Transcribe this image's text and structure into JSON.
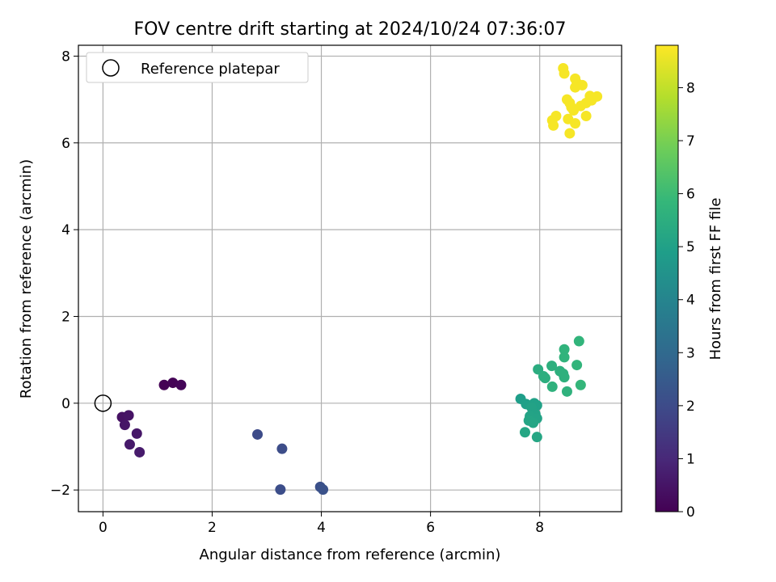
{
  "chart_data": {
    "type": "scatter",
    "title": "FOV centre drift starting at 2024/10/24 07:36:07",
    "xlabel": "Angular distance from reference (arcmin)",
    "ylabel": "Rotation from reference (arcmin)",
    "xlim": [
      -0.45,
      9.5
    ],
    "ylim": [
      -2.5,
      8.25
    ],
    "xticks": [
      0,
      2,
      4,
      6,
      8
    ],
    "yticks": [
      -2,
      0,
      2,
      4,
      6,
      8
    ],
    "grid": true,
    "legend": {
      "position": "top-left",
      "entries": [
        "Reference platepar"
      ]
    },
    "reference_point": {
      "x": 0,
      "y": 0
    },
    "colorbar": {
      "label": "Hours from first FF file",
      "range": [
        0,
        8.8
      ],
      "ticks": [
        0,
        1,
        2,
        3,
        4,
        5,
        6,
        7,
        8
      ],
      "colormap": "viridis"
    },
    "colors": {
      "viridis_stops": [
        "#440154",
        "#482878",
        "#3e4a89",
        "#31688e",
        "#26828e",
        "#1f9e89",
        "#35b779",
        "#6dcd59",
        "#b4de2c",
        "#fde725"
      ]
    },
    "points": [
      {
        "x": 1.12,
        "y": 0.42,
        "c": 0.0
      },
      {
        "x": 1.28,
        "y": 0.47,
        "c": 0.05
      },
      {
        "x": 1.43,
        "y": 0.42,
        "c": 0.1
      },
      {
        "x": 0.35,
        "y": -0.32,
        "c": 0.4
      },
      {
        "x": 0.47,
        "y": -0.28,
        "c": 0.45
      },
      {
        "x": 0.4,
        "y": -0.5,
        "c": 0.5
      },
      {
        "x": 0.62,
        "y": -0.7,
        "c": 0.55
      },
      {
        "x": 0.49,
        "y": -0.95,
        "c": 0.6
      },
      {
        "x": 0.67,
        "y": -1.13,
        "c": 0.65
      },
      {
        "x": 2.83,
        "y": -0.72,
        "c": 2.0
      },
      {
        "x": 3.28,
        "y": -1.05,
        "c": 2.05
      },
      {
        "x": 3.25,
        "y": -1.99,
        "c": 2.1
      },
      {
        "x": 3.98,
        "y": -1.93,
        "c": 2.15
      },
      {
        "x": 4.03,
        "y": -1.99,
        "c": 2.2
      },
      {
        "x": 7.65,
        "y": 0.1,
        "c": 4.9
      },
      {
        "x": 7.75,
        "y": -0.02,
        "c": 4.95
      },
      {
        "x": 7.9,
        "y": 0.0,
        "c": 5.0
      },
      {
        "x": 7.95,
        "y": -0.05,
        "c": 5.0
      },
      {
        "x": 7.85,
        "y": -0.1,
        "c": 5.05
      },
      {
        "x": 7.92,
        "y": -0.25,
        "c": 5.05
      },
      {
        "x": 7.82,
        "y": -0.3,
        "c": 5.1
      },
      {
        "x": 7.95,
        "y": -0.35,
        "c": 5.1
      },
      {
        "x": 7.8,
        "y": -0.4,
        "c": 5.15
      },
      {
        "x": 7.88,
        "y": -0.45,
        "c": 5.15
      },
      {
        "x": 7.73,
        "y": -0.67,
        "c": 5.2
      },
      {
        "x": 7.95,
        "y": -0.78,
        "c": 5.2
      },
      {
        "x": 7.97,
        "y": 0.78,
        "c": 5.45
      },
      {
        "x": 8.07,
        "y": 0.62,
        "c": 5.5
      },
      {
        "x": 8.1,
        "y": 0.58,
        "c": 5.5
      },
      {
        "x": 8.22,
        "y": 0.86,
        "c": 5.55
      },
      {
        "x": 8.37,
        "y": 0.74,
        "c": 5.55
      },
      {
        "x": 8.43,
        "y": 0.68,
        "c": 5.6
      },
      {
        "x": 8.45,
        "y": 0.6,
        "c": 5.6
      },
      {
        "x": 8.23,
        "y": 0.38,
        "c": 5.65
      },
      {
        "x": 8.5,
        "y": 0.27,
        "c": 5.65
      },
      {
        "x": 8.45,
        "y": 1.06,
        "c": 5.7
      },
      {
        "x": 8.45,
        "y": 1.24,
        "c": 5.7
      },
      {
        "x": 8.68,
        "y": 0.88,
        "c": 5.75
      },
      {
        "x": 8.72,
        "y": 1.43,
        "c": 5.75
      },
      {
        "x": 8.75,
        "y": 0.42,
        "c": 5.8
      },
      {
        "x": 8.43,
        "y": 7.72,
        "c": 8.7
      },
      {
        "x": 8.45,
        "y": 7.6,
        "c": 8.7
      },
      {
        "x": 8.65,
        "y": 7.48,
        "c": 8.7
      },
      {
        "x": 8.68,
        "y": 7.38,
        "c": 8.7
      },
      {
        "x": 8.78,
        "y": 7.33,
        "c": 8.7
      },
      {
        "x": 8.65,
        "y": 7.28,
        "c": 8.7
      },
      {
        "x": 8.92,
        "y": 7.08,
        "c": 8.7
      },
      {
        "x": 9.05,
        "y": 7.07,
        "c": 8.7
      },
      {
        "x": 8.5,
        "y": 7.0,
        "c": 8.7
      },
      {
        "x": 8.55,
        "y": 6.92,
        "c": 8.7
      },
      {
        "x": 8.95,
        "y": 6.98,
        "c": 8.7
      },
      {
        "x": 8.85,
        "y": 6.92,
        "c": 8.7
      },
      {
        "x": 8.75,
        "y": 6.85,
        "c": 8.7
      },
      {
        "x": 8.58,
        "y": 6.82,
        "c": 8.7
      },
      {
        "x": 8.62,
        "y": 6.75,
        "c": 8.7
      },
      {
        "x": 8.3,
        "y": 6.62,
        "c": 8.7
      },
      {
        "x": 8.85,
        "y": 6.62,
        "c": 8.7
      },
      {
        "x": 8.52,
        "y": 6.55,
        "c": 8.7
      },
      {
        "x": 8.23,
        "y": 6.52,
        "c": 8.7
      },
      {
        "x": 8.65,
        "y": 6.45,
        "c": 8.7
      },
      {
        "x": 8.25,
        "y": 6.4,
        "c": 8.7
      },
      {
        "x": 8.55,
        "y": 6.22,
        "c": 8.7
      }
    ]
  }
}
